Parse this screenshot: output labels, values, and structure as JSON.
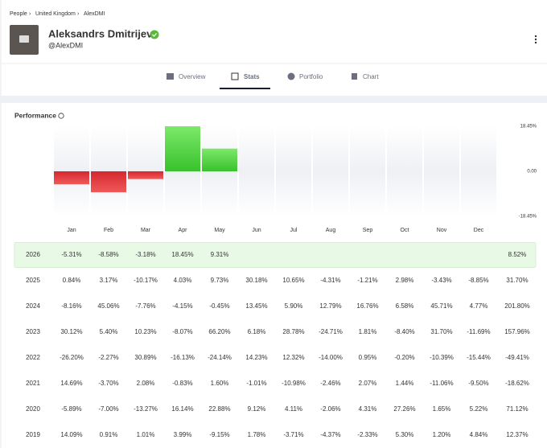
{
  "breadcrumb": [
    "People",
    "United Kingdom",
    "AlexDMI"
  ],
  "profile": {
    "name": "Aleksandrs Dmitrijevs",
    "handle": "@AlexDMI"
  },
  "tabs": [
    "Overview",
    "Stats",
    "Portfolio",
    "Chart"
  ],
  "performance_title": "Performance",
  "chart_data": {
    "type": "bar",
    "categories": [
      "Jan",
      "Feb",
      "Mar",
      "Apr",
      "May",
      "Jun",
      "Jul",
      "Aug",
      "Sep",
      "Oct",
      "Nov",
      "Dec"
    ],
    "values": [
      -5.31,
      -8.58,
      -3.18,
      18.45,
      9.31,
      null,
      null,
      null,
      null,
      null,
      null,
      null
    ],
    "ylim": [
      -18.45,
      18.45
    ],
    "yticks": [
      {
        "value": 18.45,
        "label": "18.45%"
      },
      {
        "value": 0,
        "label": "0.00"
      },
      {
        "value": -18.45,
        "label": "-18.45%"
      }
    ]
  },
  "table": {
    "rows": [
      {
        "year": "2026",
        "months": [
          "-5.31%",
          "-8.58%",
          "-3.18%",
          "18.45%",
          "9.31%",
          null,
          null,
          null,
          null,
          null,
          null,
          null
        ],
        "total": "8.52%"
      },
      {
        "year": "2025",
        "months": [
          "0.84%",
          "3.17%",
          "-10.17%",
          "4.03%",
          "9.73%",
          "30.18%",
          "10.65%",
          "-4.31%",
          "-1.21%",
          "2.98%",
          "-3.43%",
          "-8.85%"
        ],
        "total": "31.70%"
      },
      {
        "year": "2024",
        "months": [
          "-8.16%",
          "45.06%",
          "-7.76%",
          "-4.15%",
          "-0.45%",
          "13.45%",
          "5.90%",
          "12.79%",
          "16.76%",
          "6.58%",
          "45.71%",
          "4.77%"
        ],
        "total": "201.80%"
      },
      {
        "year": "2023",
        "months": [
          "30.12%",
          "5.40%",
          "10.23%",
          "-8.07%",
          "66.20%",
          "6.18%",
          "28.78%",
          "-24.71%",
          "1.81%",
          "-8.40%",
          "31.70%",
          "-11.69%"
        ],
        "total": "157.96%"
      },
      {
        "year": "2022",
        "months": [
          "-26.20%",
          "-2.27%",
          "30.89%",
          "-16.13%",
          "-24.14%",
          "14.23%",
          "12.32%",
          "-14.00%",
          "0.95%",
          "-0.20%",
          "-10.39%",
          "-15.44%"
        ],
        "total": "-49.41%"
      },
      {
        "year": "2021",
        "months": [
          "14.69%",
          "-3.70%",
          "2.08%",
          "-0.83%",
          "1.60%",
          "-1.01%",
          "-10.98%",
          "-2.46%",
          "2.07%",
          "1.44%",
          "-11.06%",
          "-9.50%"
        ],
        "total": "-18.62%"
      },
      {
        "year": "2020",
        "months": [
          "-5.89%",
          "-7.00%",
          "-13.27%",
          "16.14%",
          "22.88%",
          "9.12%",
          "4.11%",
          "-2.06%",
          "4.31%",
          "27.26%",
          "1.65%",
          "5.22%"
        ],
        "total": "71.12%"
      },
      {
        "year": "2019",
        "months": [
          "14.09%",
          "0.91%",
          "1.01%",
          "3.99%",
          "-9.15%",
          "1.78%",
          "-3.71%",
          "-4.37%",
          "-2.33%",
          "5.30%",
          "1.20%",
          "4.84%"
        ],
        "total": "12.37%"
      }
    ]
  }
}
